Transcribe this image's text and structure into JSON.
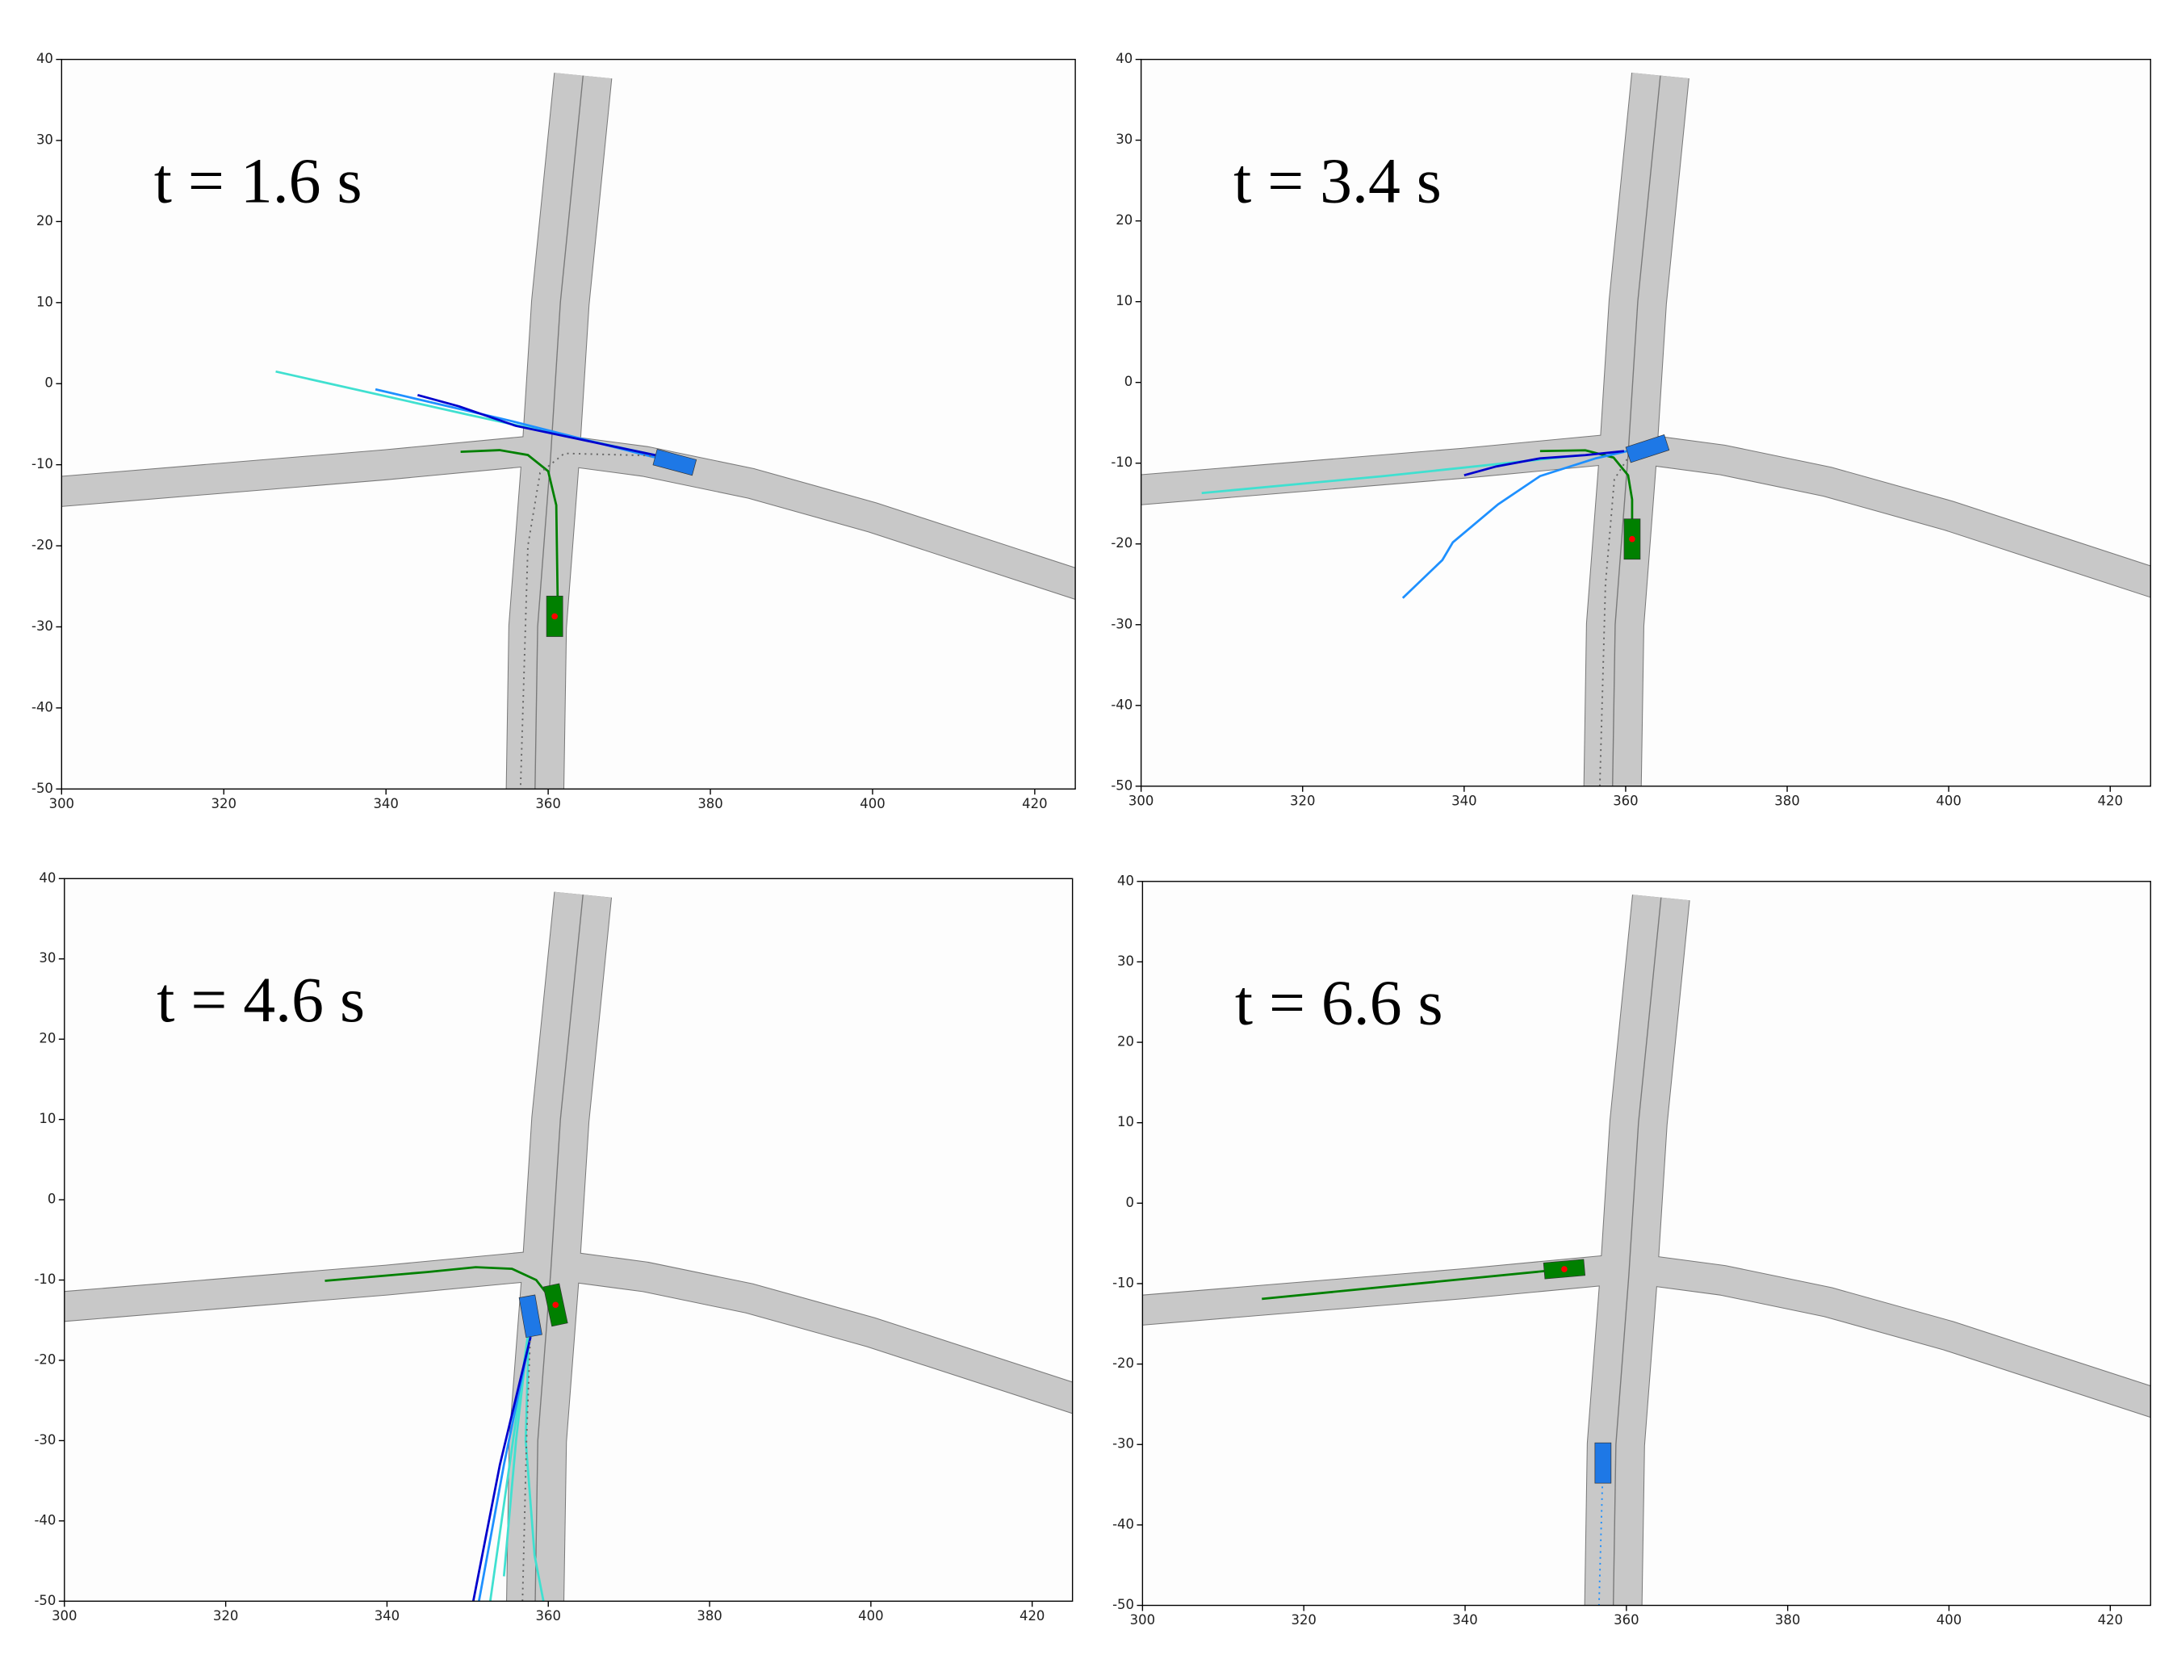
{
  "chart_data": [
    {
      "type": "line",
      "title": "t = 1.6 s",
      "xlim": [
        300,
        425
      ],
      "ylim": [
        -50,
        40
      ],
      "xticks": [
        300,
        320,
        340,
        360,
        380,
        400,
        420
      ],
      "yticks": [
        -50,
        -40,
        -30,
        -20,
        -10,
        0,
        10,
        20,
        30,
        40
      ],
      "series": [
        {
          "color": "#008000",
          "x": [
            349.2,
            354,
            357.5,
            360,
            361,
            361.2
          ],
          "values": [
            -8.4,
            -8.2,
            -8.8,
            -10.8,
            -15,
            -28.7
          ]
        },
        {
          "color": "#40e0d0",
          "x": [
            326.4,
            350,
            373.6
          ],
          "values": [
            1.5,
            -3.8,
            -8.9
          ]
        },
        {
          "color": "#1e90ff",
          "x": [
            338.7,
            355,
            373.6
          ],
          "values": [
            -0.7,
            -4.5,
            -9.2
          ]
        },
        {
          "color": "#0000cd",
          "x": [
            343.9,
            349,
            356,
            373.6
          ],
          "values": [
            -1.4,
            -2.8,
            -5.2,
            -8.9
          ]
        },
        {
          "color": "#666666",
          "style": "dotted",
          "x": [
            356.6,
            357.5,
            359,
            362,
            373.6
          ],
          "values": [
            -49.5,
            -20,
            -11,
            -8.6,
            -8.9
          ]
        }
      ],
      "vehicles": [
        {
          "color": "#1e78e6",
          "x": 375.6,
          "y": -9.7,
          "angle": 15
        },
        {
          "color": "#008000",
          "x": 360.8,
          "y": -28.7,
          "angle": 90,
          "ego": true
        }
      ]
    },
    {
      "type": "line",
      "title": "t = 3.4 s",
      "xlim": [
        300,
        425
      ],
      "ylim": [
        -50,
        40
      ],
      "xticks": [
        300,
        320,
        340,
        360,
        380,
        400,
        420
      ],
      "yticks": [
        -50,
        -40,
        -30,
        -20,
        -10,
        0,
        10,
        20,
        30,
        40
      ],
      "series": [
        {
          "color": "#008000",
          "x": [
            349.4,
            355,
            358.5,
            360.3,
            360.8,
            360.8
          ],
          "values": [
            -8.5,
            -8.4,
            -9.3,
            -11.5,
            -14.5,
            -19.4
          ]
        },
        {
          "color": "#40e0d0",
          "x": [
            307.5,
            330,
            354.6
          ],
          "values": [
            -13.7,
            -11.6,
            -9
          ]
        },
        {
          "color": "#1e90ff",
          "x": [
            332.4,
            337.3,
            338.6,
            344.2,
            349.4,
            356.3,
            361.5
          ],
          "values": [
            -26.7,
            -22,
            -19.8,
            -15.1,
            -11.6,
            -9.4,
            -8.2
          ]
        },
        {
          "color": "#0000cd",
          "x": [
            340,
            344,
            349.4,
            355,
            359.8
          ],
          "values": [
            -11.5,
            -10.4,
            -9.4,
            -9,
            -8.5
          ]
        },
        {
          "color": "#666666",
          "style": "dotted",
          "x": [
            356.8,
            357.5,
            358.6,
            360.5,
            362.7
          ],
          "values": [
            -50,
            -25,
            -12,
            -9,
            -8.2
          ]
        }
      ],
      "vehicles": [
        {
          "color": "#1e78e6",
          "x": 362.7,
          "y": -8.2,
          "angle": -18
        },
        {
          "color": "#008000",
          "x": 360.8,
          "y": -19.4,
          "angle": 90,
          "ego": true
        }
      ]
    },
    {
      "type": "line",
      "title": "t = 4.6 s",
      "xlim": [
        300,
        425
      ],
      "ylim": [
        -50,
        40
      ],
      "xticks": [
        300,
        320,
        340,
        360,
        380,
        400,
        420
      ],
      "yticks": [
        -50,
        -40,
        -30,
        -20,
        -10,
        0,
        10,
        20,
        30,
        40
      ],
      "series": [
        {
          "color": "#008000",
          "x": [
            332.3,
            345,
            351,
            355.5,
            358.5,
            360.9
          ],
          "values": [
            -10.1,
            -9,
            -8.4,
            -8.6,
            -10,
            -13.1
          ]
        },
        {
          "color": "#40e0d0",
          "x": [
            357.6,
            356,
            354.5
          ],
          "values": [
            -16,
            -30,
            -46.9
          ]
        },
        {
          "color": "#40e0d0",
          "x": [
            357.6,
            357.2,
            358.3,
            359.4
          ],
          "values": [
            -16,
            -30,
            -44.3,
            -50
          ]
        },
        {
          "color": "#40e0d0",
          "x": [
            357.6,
            355.2,
            352.8
          ],
          "values": [
            -16,
            -33,
            -50
          ]
        },
        {
          "color": "#1e90ff",
          "x": [
            357.8,
            354.5,
            351.4
          ],
          "values": [
            -17,
            -33,
            -50
          ]
        },
        {
          "color": "#0000cd",
          "x": [
            357.8,
            354,
            350.7
          ],
          "values": [
            -17.1,
            -33,
            -50
          ]
        },
        {
          "color": "#666666",
          "style": "dotted",
          "x": [
            356.8,
            357.3,
            357.8
          ],
          "values": [
            -50,
            -30,
            -16
          ]
        }
      ],
      "vehicles": [
        {
          "color": "#1e78e6",
          "x": 357.8,
          "y": -14.5,
          "angle": 80
        },
        {
          "color": "#008000",
          "x": 360.9,
          "y": -13.1,
          "angle": 78,
          "ego": true
        }
      ]
    },
    {
      "type": "line",
      "title": "t = 6.6 s",
      "xlim": [
        300,
        425
      ],
      "ylim": [
        -50,
        40
      ],
      "xticks": [
        300,
        320,
        340,
        360,
        380,
        400,
        420
      ],
      "yticks": [
        -50,
        -40,
        -30,
        -20,
        -10,
        0,
        10,
        20,
        30,
        40
      ],
      "series": [
        {
          "color": "#008000",
          "x": [
            314.8,
            352.3
          ],
          "values": [
            -11.9,
            -8.2
          ]
        },
        {
          "color": "#1e90ff",
          "style": "dotted",
          "x": [
            357.1,
            356.6
          ],
          "values": [
            -32.3,
            -50
          ]
        }
      ],
      "vehicles": [
        {
          "color": "#008000",
          "x": 352.3,
          "y": -8.2,
          "angle": -5,
          "ego": true
        },
        {
          "color": "#1e78e6",
          "x": 357.1,
          "y": -32.3,
          "angle": 90
        }
      ]
    }
  ]
}
